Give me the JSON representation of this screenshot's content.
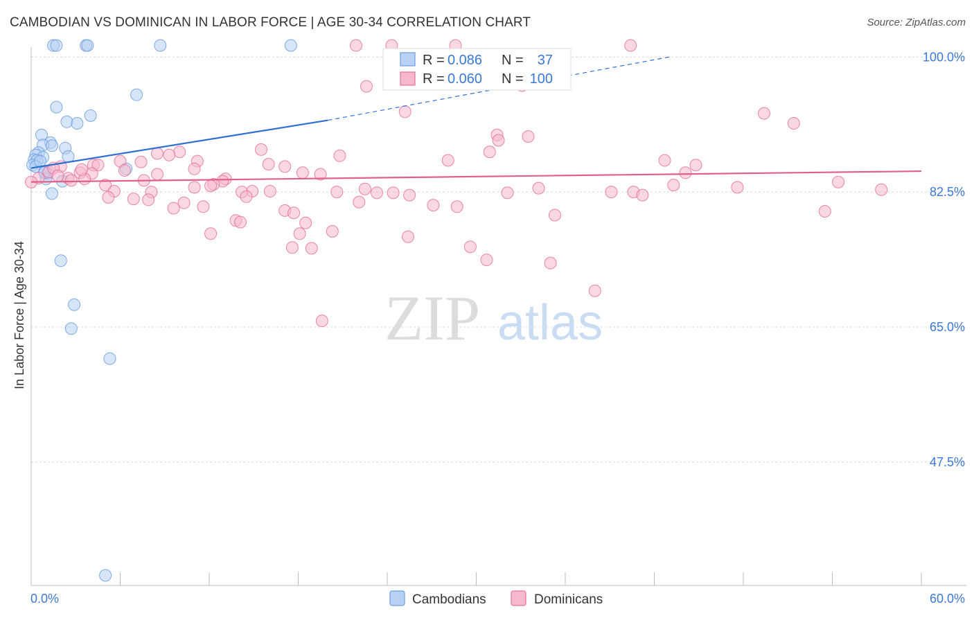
{
  "header": {
    "title": "CAMBODIAN VS DOMINICAN IN LABOR FORCE | AGE 30-34 CORRELATION CHART",
    "source": "Source: ZipAtlas.com"
  },
  "watermark": {
    "zip": "ZIP",
    "atlas": "atlas"
  },
  "stats": {
    "r_label": "R =",
    "n_label": "N =",
    "rows": [
      {
        "r": "0.086",
        "n": "37",
        "color": "#6a9ee0",
        "fill": "#b7d0f3"
      },
      {
        "r": "0.060",
        "n": "100",
        "color": "#e8709a",
        "fill": "#f6b8cc"
      }
    ]
  },
  "chart_data": {
    "type": "scatter",
    "title": "CAMBODIAN VS DOMINICAN IN LABOR FORCE | AGE 30-34 CORRELATION CHART",
    "xlabel": "",
    "ylabel": "In Labor Force | Age 30-34",
    "xlim": [
      0,
      60
    ],
    "ylim": [
      31.5,
      102
    ],
    "x_tick_labels": [
      {
        "value": 0,
        "label": "0.0%"
      },
      {
        "value": 60,
        "label": "60.0%"
      }
    ],
    "y_ticks": [
      {
        "value": 100,
        "label": "100.0%"
      },
      {
        "value": 82.5,
        "label": "82.5%"
      },
      {
        "value": 65,
        "label": "65.0%"
      },
      {
        "value": 47.5,
        "label": "47.5%"
      }
    ],
    "x_minor_ticks": [
      6,
      12,
      18,
      24,
      30,
      36,
      42,
      48,
      54,
      60
    ],
    "gridlines": "horizontal-dashed",
    "legend_position": "bottom-center",
    "series": [
      {
        "name": "Cambodians",
        "color": "#6a9ee0",
        "fill": "#b7d0f3",
        "trend": {
          "x0": 0,
          "y0": 85.6,
          "x1": 20,
          "y1": 91.8,
          "dash_to_x": 43,
          "dash_to_y": 100
        },
        "points": [
          [
            1.5,
            101.5
          ],
          [
            1.7,
            101.5
          ],
          [
            3.7,
            101.5
          ],
          [
            3.8,
            101.5
          ],
          [
            8.7,
            101.5
          ],
          [
            17.5,
            101.5
          ],
          [
            7.1,
            95.1
          ],
          [
            1.7,
            93.5
          ],
          [
            4.0,
            92.4
          ],
          [
            2.4,
            91.6
          ],
          [
            3.1,
            91.4
          ],
          [
            0.7,
            89.9
          ],
          [
            1.3,
            88.9
          ],
          [
            0.8,
            88.6
          ],
          [
            1.4,
            88.5
          ],
          [
            2.3,
            88.2
          ],
          [
            0.5,
            87.6
          ],
          [
            0.3,
            87.3
          ],
          [
            2.5,
            87.1
          ],
          [
            0.8,
            87.0
          ],
          [
            0.2,
            86.7
          ],
          [
            0.4,
            86.6
          ],
          [
            0.1,
            86.0
          ],
          [
            0.3,
            85.8
          ],
          [
            0.9,
            85.2
          ],
          [
            1.1,
            84.9
          ],
          [
            6.4,
            85.5
          ],
          [
            1.0,
            84.2
          ],
          [
            2.1,
            83.9
          ],
          [
            1.4,
            82.3
          ],
          [
            2.0,
            73.6
          ],
          [
            2.9,
            67.9
          ],
          [
            2.7,
            64.8
          ],
          [
            5.3,
            60.9
          ],
          [
            5.0,
            32.8
          ],
          [
            0.9,
            85.0
          ],
          [
            0.6,
            86.5
          ]
        ]
      },
      {
        "name": "Dominicans",
        "color": "#e8709a",
        "fill": "#f6b8cc",
        "trend": {
          "x0": 0,
          "y0": 83.8,
          "x1": 60,
          "y1": 85.2
        },
        "points": [
          [
            21.9,
            101.5
          ],
          [
            24.3,
            101.5
          ],
          [
            28.6,
            101.5
          ],
          [
            40.4,
            101.5
          ],
          [
            22.6,
            96.2
          ],
          [
            33.1,
            96.3
          ],
          [
            25.2,
            92.9
          ],
          [
            49.4,
            92.7
          ],
          [
            51.4,
            91.4
          ],
          [
            31.4,
            89.9
          ],
          [
            33.5,
            89.7
          ],
          [
            31.5,
            89.2
          ],
          [
            15.5,
            88.0
          ],
          [
            10.0,
            87.7
          ],
          [
            9.3,
            87.3
          ],
          [
            8.5,
            87.5
          ],
          [
            30.9,
            87.7
          ],
          [
            20.8,
            87.2
          ],
          [
            7.4,
            86.4
          ],
          [
            6.0,
            86.5
          ],
          [
            11.2,
            86.5
          ],
          [
            4.2,
            86.0
          ],
          [
            4.5,
            86.0
          ],
          [
            16.0,
            86.1
          ],
          [
            17.1,
            85.8
          ],
          [
            28.1,
            86.6
          ],
          [
            42.7,
            86.6
          ],
          [
            44.8,
            86.0
          ],
          [
            2.0,
            85.8
          ],
          [
            3.3,
            85.0
          ],
          [
            4.1,
            84.9
          ],
          [
            1.2,
            85.1
          ],
          [
            6.3,
            85.3
          ],
          [
            11.0,
            85.5
          ],
          [
            18.3,
            85.0
          ],
          [
            19.5,
            84.8
          ],
          [
            44.1,
            85.0
          ],
          [
            8.5,
            84.8
          ],
          [
            3.6,
            84.2
          ],
          [
            2.5,
            84.3
          ],
          [
            7.6,
            84.0
          ],
          [
            13.1,
            84.2
          ],
          [
            12.9,
            83.9
          ],
          [
            12.3,
            83.5
          ],
          [
            12.1,
            83.3
          ],
          [
            5.0,
            83.4
          ],
          [
            11.0,
            83.1
          ],
          [
            22.5,
            82.9
          ],
          [
            34.2,
            83.0
          ],
          [
            43.3,
            83.4
          ],
          [
            47.6,
            83.1
          ],
          [
            54.4,
            83.8
          ],
          [
            57.3,
            82.8
          ],
          [
            14.9,
            82.6
          ],
          [
            16.1,
            82.6
          ],
          [
            14.2,
            82.5
          ],
          [
            20.6,
            82.5
          ],
          [
            5.6,
            82.6
          ],
          [
            8.1,
            82.5
          ],
          [
            23.3,
            82.4
          ],
          [
            24.4,
            82.4
          ],
          [
            25.5,
            82.1
          ],
          [
            32.1,
            82.4
          ],
          [
            39.1,
            82.5
          ],
          [
            40.6,
            82.5
          ],
          [
            41.2,
            82.1
          ],
          [
            14.5,
            81.9
          ],
          [
            5.2,
            81.8
          ],
          [
            6.9,
            81.6
          ],
          [
            7.9,
            81.5
          ],
          [
            10.3,
            81.1
          ],
          [
            22.1,
            81.2
          ],
          [
            11.6,
            80.6
          ],
          [
            27.1,
            80.8
          ],
          [
            28.7,
            80.6
          ],
          [
            9.6,
            80.4
          ],
          [
            17.1,
            80.1
          ],
          [
            17.7,
            79.8
          ],
          [
            35.3,
            79.5
          ],
          [
            13.8,
            78.8
          ],
          [
            14.1,
            78.6
          ],
          [
            18.5,
            78.5
          ],
          [
            12.1,
            77.1
          ],
          [
            20.3,
            77.4
          ],
          [
            18.1,
            77.1
          ],
          [
            25.4,
            76.7
          ],
          [
            17.6,
            75.3
          ],
          [
            18.9,
            75.2
          ],
          [
            29.6,
            75.4
          ],
          [
            30.7,
            73.7
          ],
          [
            35.0,
            73.3
          ],
          [
            38.0,
            69.7
          ],
          [
            19.6,
            65.8
          ],
          [
            53.5,
            80.0
          ],
          [
            1.5,
            85.6
          ],
          [
            0.5,
            84.3
          ],
          [
            0.0,
            83.8
          ],
          [
            2.7,
            84.0
          ],
          [
            1.8,
            84.6
          ],
          [
            3.4,
            85.4
          ]
        ]
      }
    ]
  },
  "legend": {
    "items": [
      "Cambodians",
      "Dominicans"
    ]
  }
}
